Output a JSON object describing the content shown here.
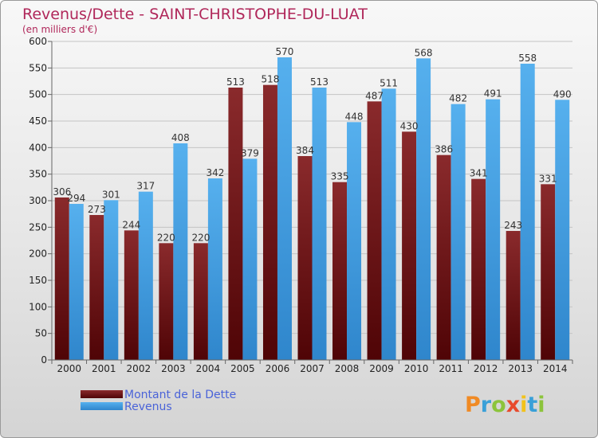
{
  "chart_data": {
    "type": "bar",
    "title": "Revenus/Dette - SAINT-CHRISTOPHE-DU-LUAT",
    "subtitle": "(en milliers d'€)",
    "categories": [
      "2000",
      "2001",
      "2002",
      "2003",
      "2004",
      "2005",
      "2006",
      "2007",
      "2008",
      "2009",
      "2010",
      "2011",
      "2012",
      "2013",
      "2014"
    ],
    "series": [
      {
        "name": "Montant de la Dette",
        "color": "#7a1518",
        "values": [
          306,
          273,
          244,
          220,
          220,
          513,
          518,
          384,
          335,
          487,
          430,
          386,
          341,
          243,
          331
        ]
      },
      {
        "name": "Revenus",
        "color": "#3a9be0",
        "values": [
          294,
          301,
          317,
          408,
          342,
          379,
          570,
          513,
          448,
          511,
          568,
          482,
          491,
          558,
          490
        ]
      }
    ],
    "ylim": [
      0,
      600
    ],
    "yticks": [
      0,
      50,
      100,
      150,
      200,
      250,
      300,
      350,
      400,
      450,
      500,
      550,
      600
    ],
    "grid": true,
    "legend_position": "bottom-left"
  },
  "branding": {
    "logo_text": "Proxiti"
  }
}
